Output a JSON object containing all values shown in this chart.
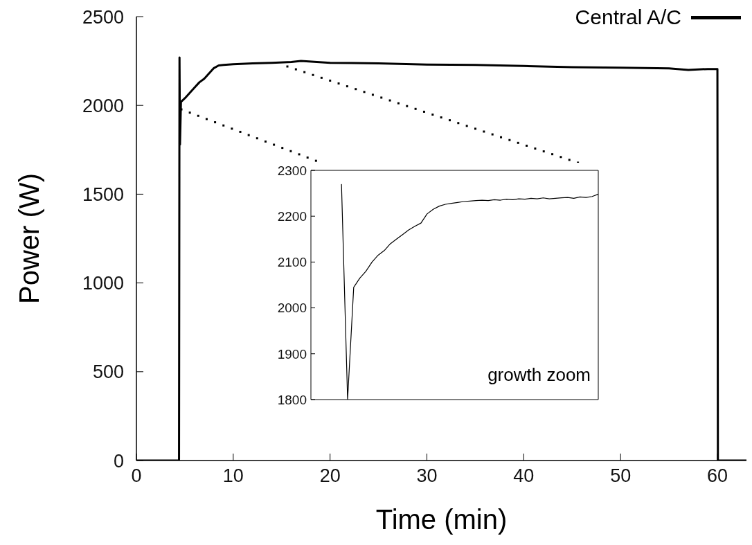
{
  "chart_data": [
    {
      "type": "line",
      "xlabel": "Time (min)",
      "ylabel": "Power (W)",
      "xlim": [
        0,
        63
      ],
      "xticks": [
        0,
        10,
        20,
        30,
        40,
        50,
        60
      ],
      "ylim": [
        0,
        2500
      ],
      "yticks": [
        0,
        500,
        1000,
        1500,
        2000,
        2500
      ],
      "legend": "top right",
      "series": [
        {
          "name": "Central A/C",
          "color": "#000000",
          "x": [
            0,
            4.4,
            4.45,
            4.5,
            4.6,
            5,
            5.5,
            6,
            6.5,
            7,
            7.5,
            8,
            8.5,
            9,
            10,
            12,
            14,
            16,
            17,
            20,
            25,
            30,
            35,
            40,
            45,
            50,
            55,
            57,
            59,
            60,
            60.05,
            63
          ],
          "values": [
            0,
            0,
            2270,
            1780,
            2020,
            2040,
            2070,
            2100,
            2130,
            2150,
            2180,
            2210,
            2225,
            2228,
            2232,
            2237,
            2240,
            2245,
            2250,
            2240,
            2237,
            2230,
            2228,
            2222,
            2215,
            2212,
            2208,
            2200,
            2205,
            2205,
            0,
            0
          ]
        }
      ]
    },
    {
      "type": "line",
      "categories": [
        null,
        null,
        null,
        null,
        null,
        null,
        null,
        null,
        null,
        null,
        null,
        null,
        null,
        null,
        null,
        null,
        null,
        null,
        null,
        null,
        null,
        null,
        null,
        null,
        null,
        null,
        null,
        null,
        null,
        null,
        null,
        null,
        null,
        null,
        null,
        null,
        null,
        null,
        null,
        null,
        null,
        null,
        null,
        null,
        null,
        null,
        null,
        null
      ],
      "ylim": [
        1800,
        2300
      ],
      "yticks": [
        1800,
        1900,
        2000,
        2100,
        2200,
        2300
      ],
      "annotations": [
        "growth zoom"
      ],
      "series": [
        {
          "color": "#000000",
          "values": [
            null,
            null,
            null,
            null,
            null,
            2270,
            1800,
            2045,
            2065,
            2080,
            2100,
            2115,
            2125,
            2140,
            2150,
            2160,
            2170,
            2178,
            2185,
            2205,
            2215,
            2222,
            2226,
            2228,
            2230,
            2232,
            2233,
            2234,
            2235,
            2234,
            2236,
            2235,
            2237,
            2236,
            2238,
            2237,
            2239,
            2238,
            2240,
            2238,
            2239,
            2240,
            2241,
            2239,
            2242,
            2241,
            2243,
            2248
          ]
        }
      ]
    }
  ]
}
